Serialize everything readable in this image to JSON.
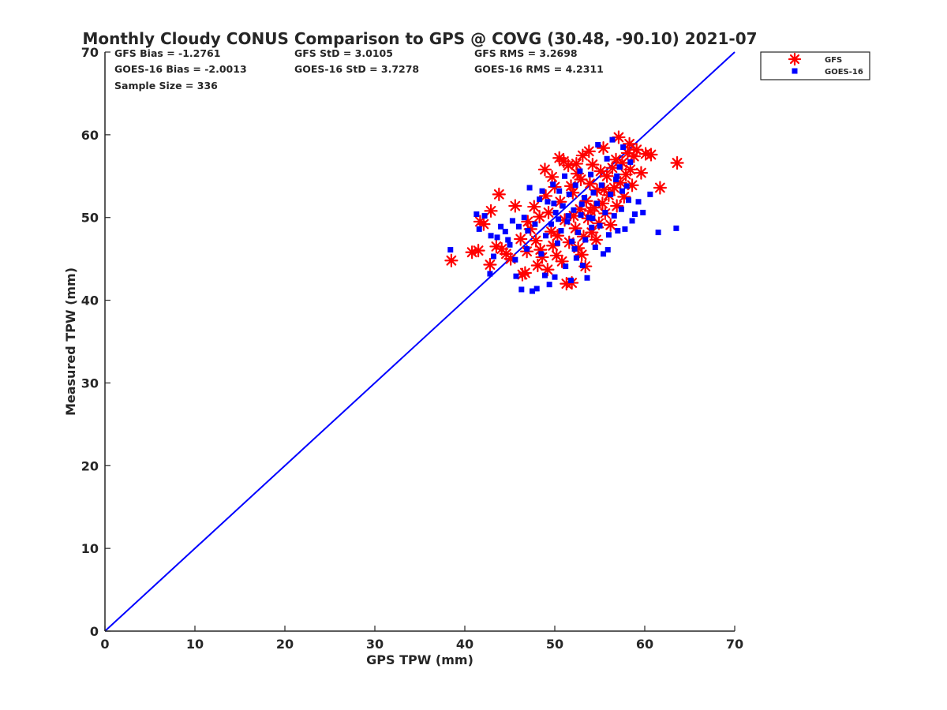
{
  "chart_data": {
    "type": "scatter",
    "title": "Monthly Cloudy CONUS Comparison to GPS @ COVG (30.48, -90.10) 2021-07",
    "xlabel": "GPS TPW (mm)",
    "ylabel": "Measured TPW (mm)",
    "xlim": [
      0,
      70
    ],
    "ylim": [
      0,
      70
    ],
    "xticks": [
      "0",
      "10",
      "20",
      "30",
      "40",
      "50",
      "60",
      "70"
    ],
    "yticks": [
      "0",
      "10",
      "20",
      "30",
      "40",
      "50",
      "60",
      "70"
    ],
    "grid": false,
    "legend_position": "outside-top-right",
    "stats": [
      "GFS Bias = -1.2761",
      "GFS StD = 3.0105",
      "GFS RMS = 3.2698",
      "GOES-16 Bias = -2.0013",
      "GOES-16 StD = 3.7278",
      "GOES-16 RMS = 4.2311",
      "Sample Size = 336"
    ],
    "reference_line": {
      "x": [
        0,
        70
      ],
      "y": [
        0,
        70
      ],
      "color": "#0000ff"
    },
    "series": [
      {
        "name": "GFS",
        "marker": "asterisk",
        "color": "#ff0000",
        "points": [
          [
            38.5,
            44.8
          ],
          [
            40.8,
            45.8
          ],
          [
            41.5,
            46.0
          ],
          [
            41.7,
            49.5
          ],
          [
            42.1,
            49.2
          ],
          [
            42.9,
            50.8
          ],
          [
            42.8,
            44.3
          ],
          [
            43.5,
            46.5
          ],
          [
            43.8,
            52.8
          ],
          [
            44.1,
            46.2
          ],
          [
            44.6,
            45.6
          ],
          [
            45.1,
            45.0
          ],
          [
            45.6,
            51.4
          ],
          [
            46.2,
            47.4
          ],
          [
            46.4,
            43.1
          ],
          [
            46.7,
            43.3
          ],
          [
            47.3,
            48.6
          ],
          [
            47.7,
            51.3
          ],
          [
            47.9,
            47.2
          ],
          [
            48.1,
            44.2
          ],
          [
            48.4,
            46.1
          ],
          [
            48.6,
            45.2
          ],
          [
            48.9,
            55.8
          ],
          [
            49.2,
            43.7
          ],
          [
            49.3,
            50.6
          ],
          [
            49.6,
            48.3
          ],
          [
            49.8,
            46.6
          ],
          [
            50.0,
            53.7
          ],
          [
            50.3,
            47.8
          ],
          [
            50.5,
            57.2
          ],
          [
            50.6,
            51.9
          ],
          [
            50.8,
            44.7
          ],
          [
            51.0,
            56.8
          ],
          [
            51.1,
            49.7
          ],
          [
            51.3,
            42.0
          ],
          [
            51.5,
            56.3
          ],
          [
            51.6,
            47.0
          ],
          [
            51.9,
            42.1
          ],
          [
            52.0,
            53.0
          ],
          [
            52.1,
            50.2
          ],
          [
            52.3,
            48.7
          ],
          [
            52.4,
            56.5
          ],
          [
            52.6,
            46.3
          ],
          [
            52.8,
            51.0
          ],
          [
            52.9,
            54.6
          ],
          [
            53.1,
            57.5
          ],
          [
            53.2,
            47.7
          ],
          [
            53.4,
            44.1
          ],
          [
            53.5,
            52.0
          ],
          [
            53.7,
            49.9
          ],
          [
            53.9,
            54.1
          ],
          [
            54.1,
            48.2
          ],
          [
            54.2,
            56.4
          ],
          [
            54.4,
            51.2
          ],
          [
            54.6,
            47.3
          ],
          [
            54.7,
            53.3
          ],
          [
            54.9,
            49.3
          ],
          [
            55.1,
            55.6
          ],
          [
            55.3,
            51.7
          ],
          [
            55.4,
            58.4
          ],
          [
            55.6,
            50.5
          ],
          [
            55.8,
            55.0
          ],
          [
            56.0,
            52.7
          ],
          [
            56.2,
            49.1
          ],
          [
            56.4,
            56.0
          ],
          [
            56.6,
            53.6
          ],
          [
            56.8,
            57.0
          ],
          [
            56.9,
            51.4
          ],
          [
            57.1,
            59.7
          ],
          [
            57.3,
            54.2
          ],
          [
            57.5,
            56.6
          ],
          [
            57.7,
            52.5
          ],
          [
            57.9,
            55.2
          ],
          [
            58.1,
            57.8
          ],
          [
            58.3,
            58.9
          ],
          [
            58.6,
            53.9
          ],
          [
            58.8,
            57.4
          ],
          [
            59.1,
            58.2
          ],
          [
            59.6,
            55.4
          ],
          [
            60.1,
            57.7
          ],
          [
            60.7,
            57.6
          ],
          [
            61.7,
            53.6
          ],
          [
            63.6,
            56.6
          ],
          [
            47.0,
            49.5
          ],
          [
            49.0,
            52.6
          ],
          [
            50.2,
            45.4
          ],
          [
            52.5,
            55.3
          ],
          [
            53.0,
            45.5
          ],
          [
            54.0,
            50.8
          ],
          [
            51.8,
            53.8
          ],
          [
            48.3,
            50.1
          ],
          [
            55.5,
            53.4
          ],
          [
            46.9,
            45.9
          ],
          [
            58.4,
            55.8
          ],
          [
            49.7,
            54.9
          ],
          [
            53.8,
            58.0
          ]
        ]
      },
      {
        "name": "GOES-16",
        "marker": "square",
        "color": "#0000ff",
        "points": [
          [
            38.4,
            46.1
          ],
          [
            41.3,
            50.4
          ],
          [
            41.6,
            48.6
          ],
          [
            42.2,
            50.2
          ],
          [
            42.8,
            43.2
          ],
          [
            42.9,
            47.8
          ],
          [
            43.2,
            45.3
          ],
          [
            43.6,
            47.6
          ],
          [
            44.0,
            48.9
          ],
          [
            44.5,
            48.3
          ],
          [
            45.0,
            46.7
          ],
          [
            45.3,
            49.6
          ],
          [
            45.7,
            42.9
          ],
          [
            46.0,
            48.9
          ],
          [
            46.3,
            41.3
          ],
          [
            46.6,
            50.0
          ],
          [
            46.9,
            46.2
          ],
          [
            47.2,
            53.6
          ],
          [
            47.5,
            41.1
          ],
          [
            47.8,
            49.2
          ],
          [
            48.0,
            41.4
          ],
          [
            48.3,
            52.2
          ],
          [
            48.6,
            53.2
          ],
          [
            48.9,
            43.0
          ],
          [
            49.0,
            47.8
          ],
          [
            49.2,
            51.9
          ],
          [
            49.4,
            41.9
          ],
          [
            49.6,
            49.2
          ],
          [
            49.8,
            54.0
          ],
          [
            50.0,
            42.8
          ],
          [
            50.1,
            50.6
          ],
          [
            50.3,
            46.9
          ],
          [
            50.5,
            53.2
          ],
          [
            50.7,
            48.4
          ],
          [
            50.9,
            51.4
          ],
          [
            51.1,
            55.0
          ],
          [
            51.2,
            44.1
          ],
          [
            51.4,
            49.5
          ],
          [
            51.6,
            52.8
          ],
          [
            51.8,
            42.4
          ],
          [
            51.9,
            47.1
          ],
          [
            52.1,
            50.9
          ],
          [
            52.3,
            53.9
          ],
          [
            52.4,
            45.1
          ],
          [
            52.6,
            48.2
          ],
          [
            52.8,
            55.6
          ],
          [
            52.9,
            50.3
          ],
          [
            53.1,
            44.2
          ],
          [
            53.3,
            52.4
          ],
          [
            53.4,
            47.3
          ],
          [
            53.6,
            42.7
          ],
          [
            53.8,
            50.0
          ],
          [
            54.0,
            55.2
          ],
          [
            54.1,
            48.8
          ],
          [
            54.3,
            53.0
          ],
          [
            54.5,
            46.4
          ],
          [
            54.7,
            51.7
          ],
          [
            54.8,
            58.8
          ],
          [
            55.0,
            49.0
          ],
          [
            55.2,
            53.9
          ],
          [
            55.4,
            45.6
          ],
          [
            55.6,
            50.6
          ],
          [
            55.8,
            57.1
          ],
          [
            56.0,
            47.9
          ],
          [
            56.2,
            52.8
          ],
          [
            56.4,
            59.4
          ],
          [
            56.6,
            50.2
          ],
          [
            56.8,
            54.6
          ],
          [
            57.0,
            48.4
          ],
          [
            57.2,
            56.1
          ],
          [
            57.4,
            51.0
          ],
          [
            57.6,
            58.5
          ],
          [
            57.8,
            48.6
          ],
          [
            58.0,
            53.8
          ],
          [
            58.2,
            52.1
          ],
          [
            58.4,
            56.7
          ],
          [
            58.6,
            49.6
          ],
          [
            58.9,
            50.4
          ],
          [
            59.3,
            51.9
          ],
          [
            59.8,
            50.6
          ],
          [
            60.6,
            52.8
          ],
          [
            61.5,
            48.2
          ],
          [
            63.5,
            48.7
          ],
          [
            45.6,
            44.9
          ],
          [
            47.0,
            48.4
          ],
          [
            48.5,
            45.6
          ],
          [
            50.4,
            49.8
          ],
          [
            52.2,
            46.2
          ],
          [
            54.2,
            49.9
          ],
          [
            55.9,
            46.1
          ],
          [
            57.5,
            53.2
          ],
          [
            49.9,
            51.7
          ],
          [
            51.5,
            50.2
          ],
          [
            53.0,
            51.6
          ],
          [
            44.8,
            47.3
          ],
          [
            56.9,
            55.0
          ]
        ]
      }
    ]
  }
}
